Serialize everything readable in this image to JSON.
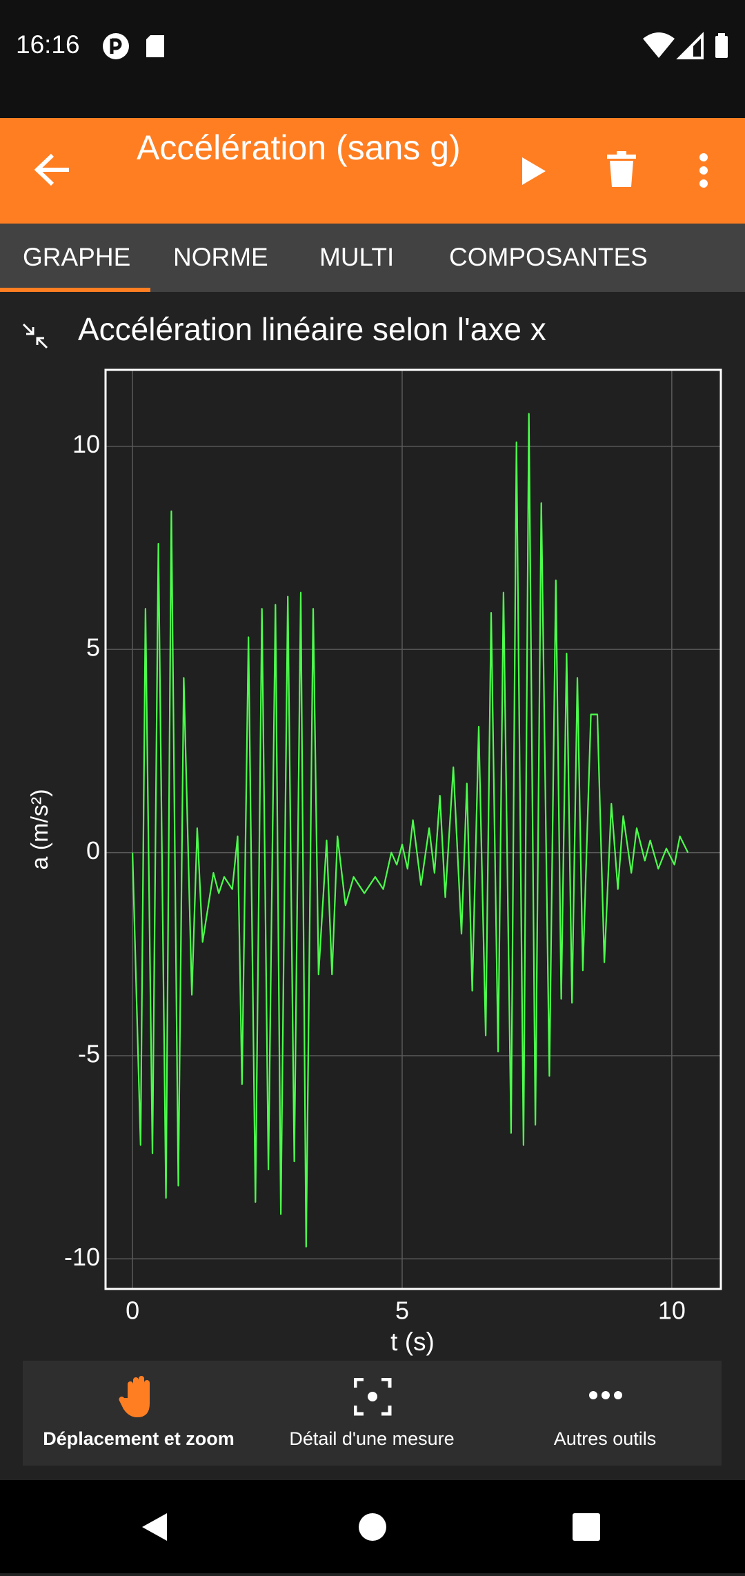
{
  "status_bar": {
    "time": "16:16"
  },
  "toolbar": {
    "title": "Accélération (sans g)"
  },
  "tabs": [
    "GRAPHE",
    "NORME",
    "MULTI",
    "COMPOSANTES"
  ],
  "tools": [
    "Déplacement et zoom",
    "Détail d'une mesure",
    "Autres outils"
  ],
  "chart_data": {
    "type": "line",
    "title": "Accélération linéaire selon l'axe x",
    "xlabel": "t (s)",
    "ylabel": "a (m/s²)",
    "x": [
      0,
      0.15,
      0.24,
      0.37,
      0.48,
      0.62,
      0.72,
      0.85,
      0.95,
      1.1,
      1.2,
      1.3,
      1.5,
      1.6,
      1.7,
      1.85,
      1.95,
      2.03,
      2.15,
      2.28,
      2.4,
      2.52,
      2.65,
      2.75,
      2.88,
      3.0,
      3.12,
      3.22,
      3.35,
      3.45,
      3.6,
      3.7,
      3.8,
      3.95,
      4.1,
      4.3,
      4.5,
      4.65,
      4.8,
      4.9,
      5.0,
      5.1,
      5.2,
      5.35,
      5.5,
      5.6,
      5.7,
      5.8,
      5.95,
      6.1,
      6.2,
      6.3,
      6.42,
      6.55,
      6.65,
      6.78,
      6.88,
      7.02,
      7.12,
      7.25,
      7.35,
      7.47,
      7.58,
      7.73,
      7.85,
      7.95,
      8.05,
      8.15,
      8.25,
      8.35,
      8.5,
      8.62,
      8.75,
      8.88,
      9.0,
      9.1,
      9.25,
      9.35,
      9.5,
      9.6,
      9.75,
      9.9,
      10.05,
      10.15,
      10.3
    ],
    "values": [
      0,
      -7.2,
      6,
      -7.4,
      7.6,
      -8.5,
      8.4,
      -8.2,
      4.3,
      -3.5,
      0.6,
      -2.2,
      -0.5,
      -1,
      -0.6,
      -0.9,
      0.4,
      -5.7,
      5.3,
      -8.6,
      6,
      -7.8,
      6.1,
      -8.9,
      6.3,
      -7.6,
      6.4,
      -9.7,
      6,
      -3,
      0.3,
      -3,
      0.4,
      -1.3,
      -0.6,
      -1,
      -0.6,
      -0.9,
      0,
      -0.3,
      0.2,
      -0.4,
      0.8,
      -0.8,
      0.6,
      -0.5,
      1.4,
      -1.1,
      2.1,
      -2,
      1.7,
      -3.4,
      3.1,
      -4.5,
      5.9,
      -4.9,
      6.4,
      -6.9,
      10.1,
      -7.2,
      10.8,
      -6.7,
      8.6,
      -5.5,
      6.7,
      -3.6,
      4.9,
      -3.7,
      4.3,
      -2.9,
      3.4,
      3.4,
      -2.7,
      1.2,
      -0.9,
      0.9,
      -0.5,
      0.6,
      -0.2,
      0.3,
      -0.4,
      0.1,
      -0.3,
      0.4,
      0
    ],
    "color": "#4cff4c",
    "xlim": [
      -0.5,
      10.91
    ],
    "ylim": [
      -10.74,
      11.88
    ],
    "xticks": [
      0,
      5,
      10
    ],
    "yticks": [
      -10,
      -5,
      0,
      5,
      10
    ],
    "grid": true
  }
}
